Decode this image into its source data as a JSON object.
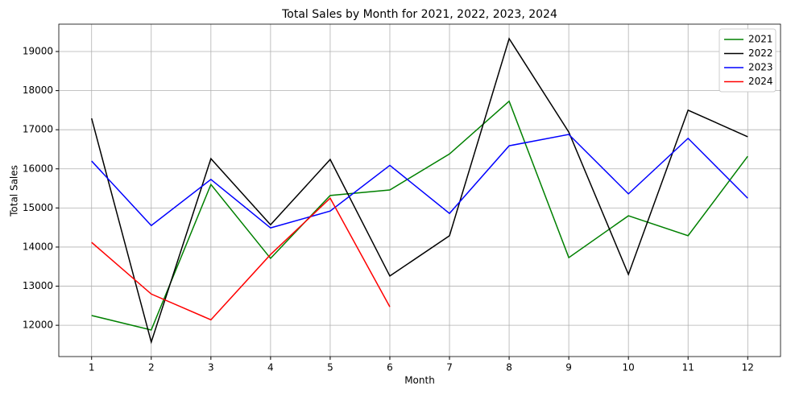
{
  "chart_data": {
    "type": "line",
    "title": "Total Sales by Month for 2021, 2022, 2023, 2024",
    "xlabel": "Month",
    "ylabel": "Total Sales",
    "x": [
      1,
      2,
      3,
      4,
      5,
      6,
      7,
      8,
      9,
      10,
      11,
      12
    ],
    "series": [
      {
        "name": "2021",
        "color": "#008000",
        "values": [
          12250,
          11880,
          15600,
          13710,
          15320,
          15460,
          16380,
          17730,
          13730,
          14800,
          14290,
          16320
        ]
      },
      {
        "name": "2022",
        "color": "#000000",
        "values": [
          17290,
          11570,
          16260,
          14570,
          16240,
          13260,
          14290,
          19330,
          16940,
          13300,
          17500,
          16820
        ]
      },
      {
        "name": "2023",
        "color": "#0000ff",
        "values": [
          16200,
          14550,
          15730,
          14490,
          14920,
          16090,
          14860,
          16590,
          16880,
          15360,
          16780,
          15250
        ]
      },
      {
        "name": "2024",
        "color": "#ff0000",
        "values": [
          14120,
          12800,
          12140,
          13810,
          15250,
          12470,
          null,
          null,
          null,
          null,
          null,
          null
        ]
      }
    ],
    "xlim": [
      0.45,
      12.55
    ],
    "xticks": [
      1,
      2,
      3,
      4,
      5,
      6,
      7,
      8,
      9,
      10,
      11,
      12
    ],
    "ylim": [
      11200,
      19700
    ],
    "yticks": [
      12000,
      13000,
      14000,
      15000,
      16000,
      17000,
      18000,
      19000
    ],
    "grid": true,
    "legend": "upper right"
  }
}
